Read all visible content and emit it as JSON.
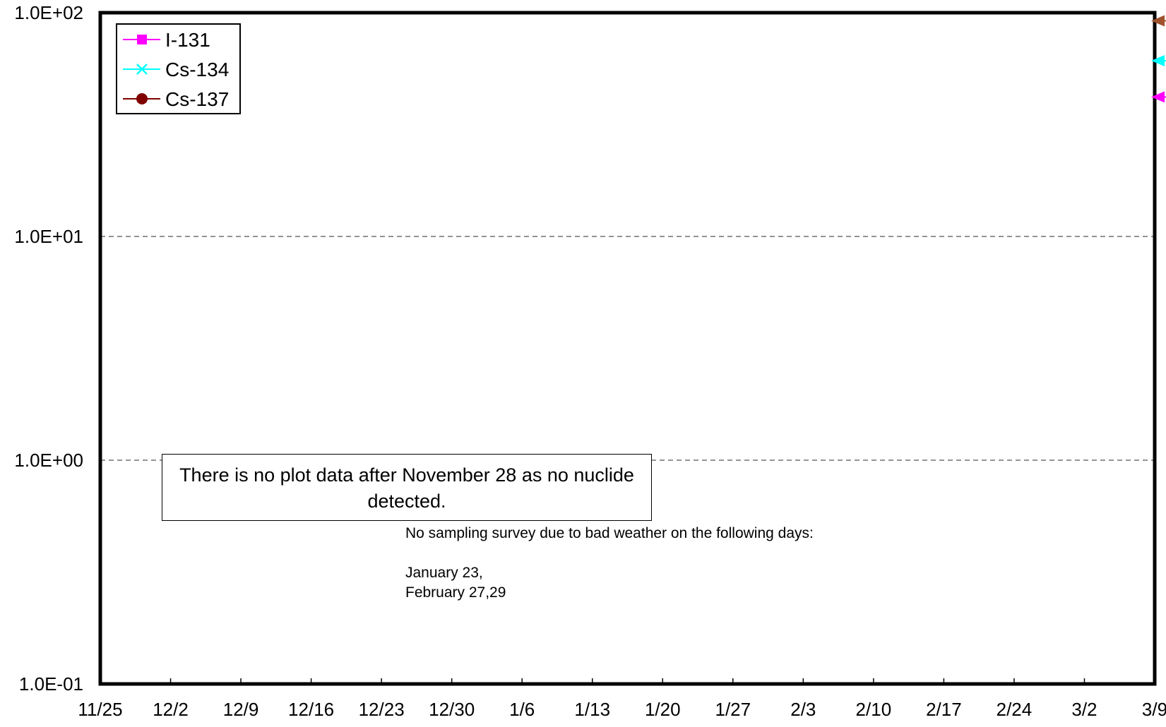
{
  "chart_data": {
    "type": "line",
    "title": "",
    "xlabel": "",
    "ylabel": "",
    "y_scale": "log",
    "ylim": [
      0.1,
      100
    ],
    "yticks": [
      "1.0E-01",
      "1.0E+00",
      "1.0E+01",
      "1.0E+02"
    ],
    "ytick_values": [
      0.1,
      1,
      10,
      100
    ],
    "x_tick_labels": [
      "11/25",
      "12/2",
      "12/9",
      "12/16",
      "12/23",
      "12/30",
      "1/6",
      "1/13",
      "1/20",
      "1/27",
      "2/3",
      "2/10",
      "2/17",
      "2/24",
      "3/2",
      "3/9"
    ],
    "grid": "horizontal dashed",
    "legend_position": "top-left",
    "series": [
      {
        "name": "I-131",
        "color": "#ff00ff",
        "marker": "square",
        "points": []
      },
      {
        "name": "Cs-134",
        "color": "#00ffff",
        "marker": "x",
        "points": []
      },
      {
        "name": "Cs-137",
        "color": "#800000",
        "marker": "circle",
        "points": []
      }
    ],
    "right_edge_markers": [
      {
        "series": "Cs-137",
        "value": 92,
        "color": "#a0522d"
      },
      {
        "series": "Cs-134",
        "value": 61,
        "color": "#00ffff"
      },
      {
        "series": "I-131",
        "value": 42,
        "color": "#ff00ff"
      }
    ],
    "annotations": {
      "box": "There is no plot data after November 28 as no nuclide detected.",
      "survey_note": "No sampling survey due to bad weather on the following days:",
      "survey_dates": [
        "January 23,",
        "February 27,29"
      ]
    }
  }
}
